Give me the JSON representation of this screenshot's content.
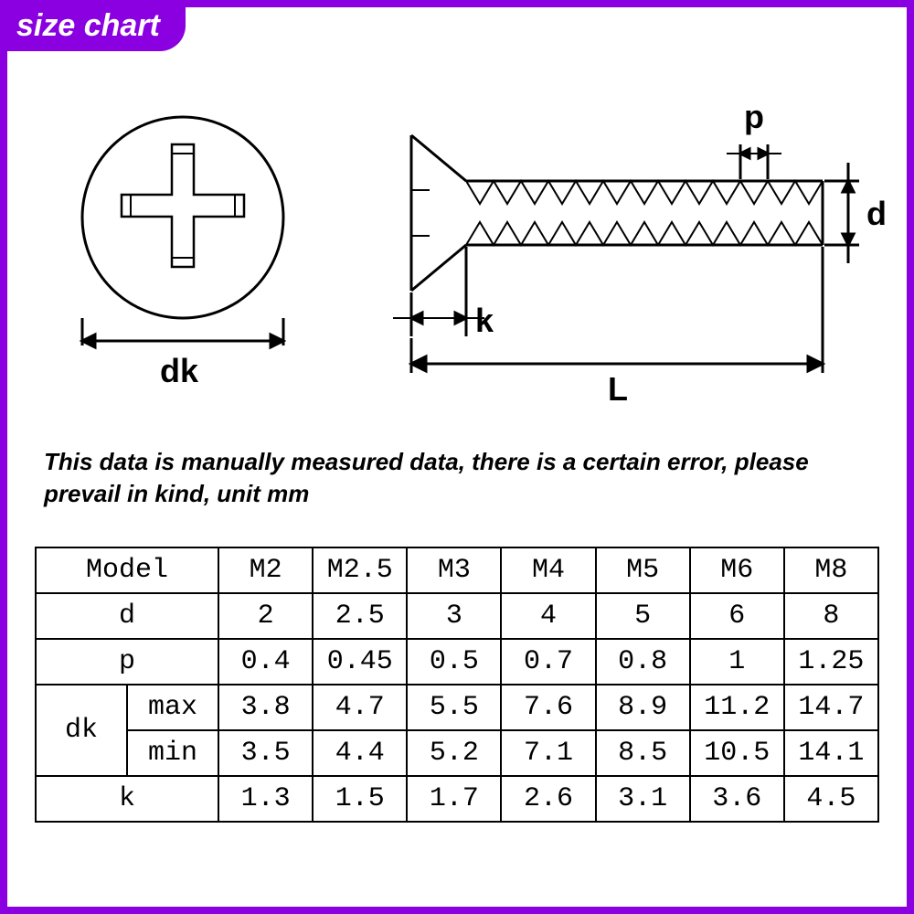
{
  "colors": {
    "frame": "#8a00e0",
    "diagram_stroke": "#000000",
    "text": "#000000",
    "bg": "#ffffff"
  },
  "title": "size chart",
  "note": "This data is manually measured data, there is a certain error, please prevail in kind, unit mm",
  "diagram": {
    "labels": {
      "dk": "dk",
      "k": "k",
      "L": "L",
      "d": "d",
      "p": "p"
    },
    "stroke_width": 3,
    "font_size": 34
  },
  "table": {
    "header_label": "Model",
    "row_labels": [
      "d",
      "p",
      "dk",
      "k"
    ],
    "dk_sub": [
      "max",
      "min"
    ],
    "columns": [
      "M2",
      "M2.5",
      "M3",
      "M4",
      "M5",
      "M6",
      "M8"
    ],
    "rows": {
      "d": [
        "2",
        "2.5",
        "3",
        "4",
        "5",
        "6",
        "8"
      ],
      "p": [
        "0.4",
        "0.45",
        "0.5",
        "0.7",
        "0.8",
        "1",
        "1.25"
      ],
      "dk_max": [
        "3.8",
        "4.7",
        "5.5",
        "7.6",
        "8.9",
        "11.2",
        "14.7"
      ],
      "dk_min": [
        "3.5",
        "4.4",
        "5.2",
        "7.1",
        "8.5",
        "10.5",
        "14.1"
      ],
      "k": [
        "1.3",
        "1.5",
        "1.7",
        "2.6",
        "3.1",
        "3.6",
        "4.5"
      ]
    },
    "font_family": "Courier New",
    "font_size": 30
  }
}
